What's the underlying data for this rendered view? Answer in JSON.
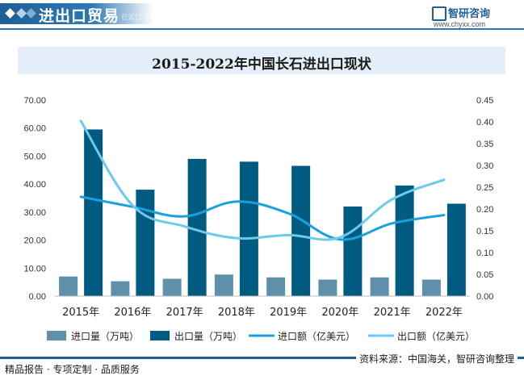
{
  "header": {
    "title": "进出口贸易",
    "subtitle": "export",
    "brand_name": "智研咨询",
    "brand_url": "www.chyxx.com"
  },
  "footer": {
    "left_text": "精品报告 · 专项定制 · 品质服务",
    "source_text": "资料来源：中国海关，智研咨询整理"
  },
  "colors": {
    "header_blue": "#1d5f96",
    "title_band": "#e3eef8",
    "import_volume": "#5e90ac",
    "export_volume": "#005b80",
    "import_value": "#1aa1dd",
    "export_value": "#6ec9f1"
  },
  "chart_data": {
    "type": "bar",
    "title": "2015-2022年中国长石进出口现状",
    "categories": [
      "2015年",
      "2016年",
      "2017年",
      "2018年",
      "2019年",
      "2020年",
      "2021年",
      "2022年"
    ],
    "y_left": {
      "min": 0,
      "max": 70,
      "step": 10,
      "tick_labels": [
        "0.00",
        "10.00",
        "20.00",
        "30.00",
        "40.00",
        "50.00",
        "60.00",
        "70.00"
      ]
    },
    "y_right": {
      "min": 0,
      "max": 0.45,
      "step": 0.05,
      "tick_labels": [
        "0.00",
        "0.05",
        "0.10",
        "0.15",
        "0.20",
        "0.25",
        "0.30",
        "0.35",
        "0.40",
        "0.45"
      ]
    },
    "series": [
      {
        "name": "进口量（万吨）",
        "type": "bar",
        "axis": "left",
        "color": "#5e90ac",
        "values": [
          7.0,
          5.3,
          6.2,
          7.7,
          6.7,
          5.9,
          6.7,
          5.9
        ]
      },
      {
        "name": "出口量（万吨）",
        "type": "bar",
        "axis": "left",
        "color": "#005b80",
        "values": [
          59.5,
          38.0,
          49.0,
          48.0,
          46.5,
          32.0,
          39.5,
          33.0
        ]
      },
      {
        "name": "进口额（亿美元）",
        "type": "line",
        "axis": "right",
        "color": "#1aa1dd",
        "values": [
          0.228,
          0.205,
          0.183,
          0.217,
          0.19,
          0.13,
          0.167,
          0.186
        ]
      },
      {
        "name": "出口额（亿美元）",
        "type": "line",
        "axis": "right",
        "color": "#6ec9f1",
        "values": [
          0.402,
          0.208,
          0.16,
          0.133,
          0.14,
          0.135,
          0.222,
          0.267
        ]
      }
    ],
    "legend_position": "bottom",
    "grid": false
  }
}
